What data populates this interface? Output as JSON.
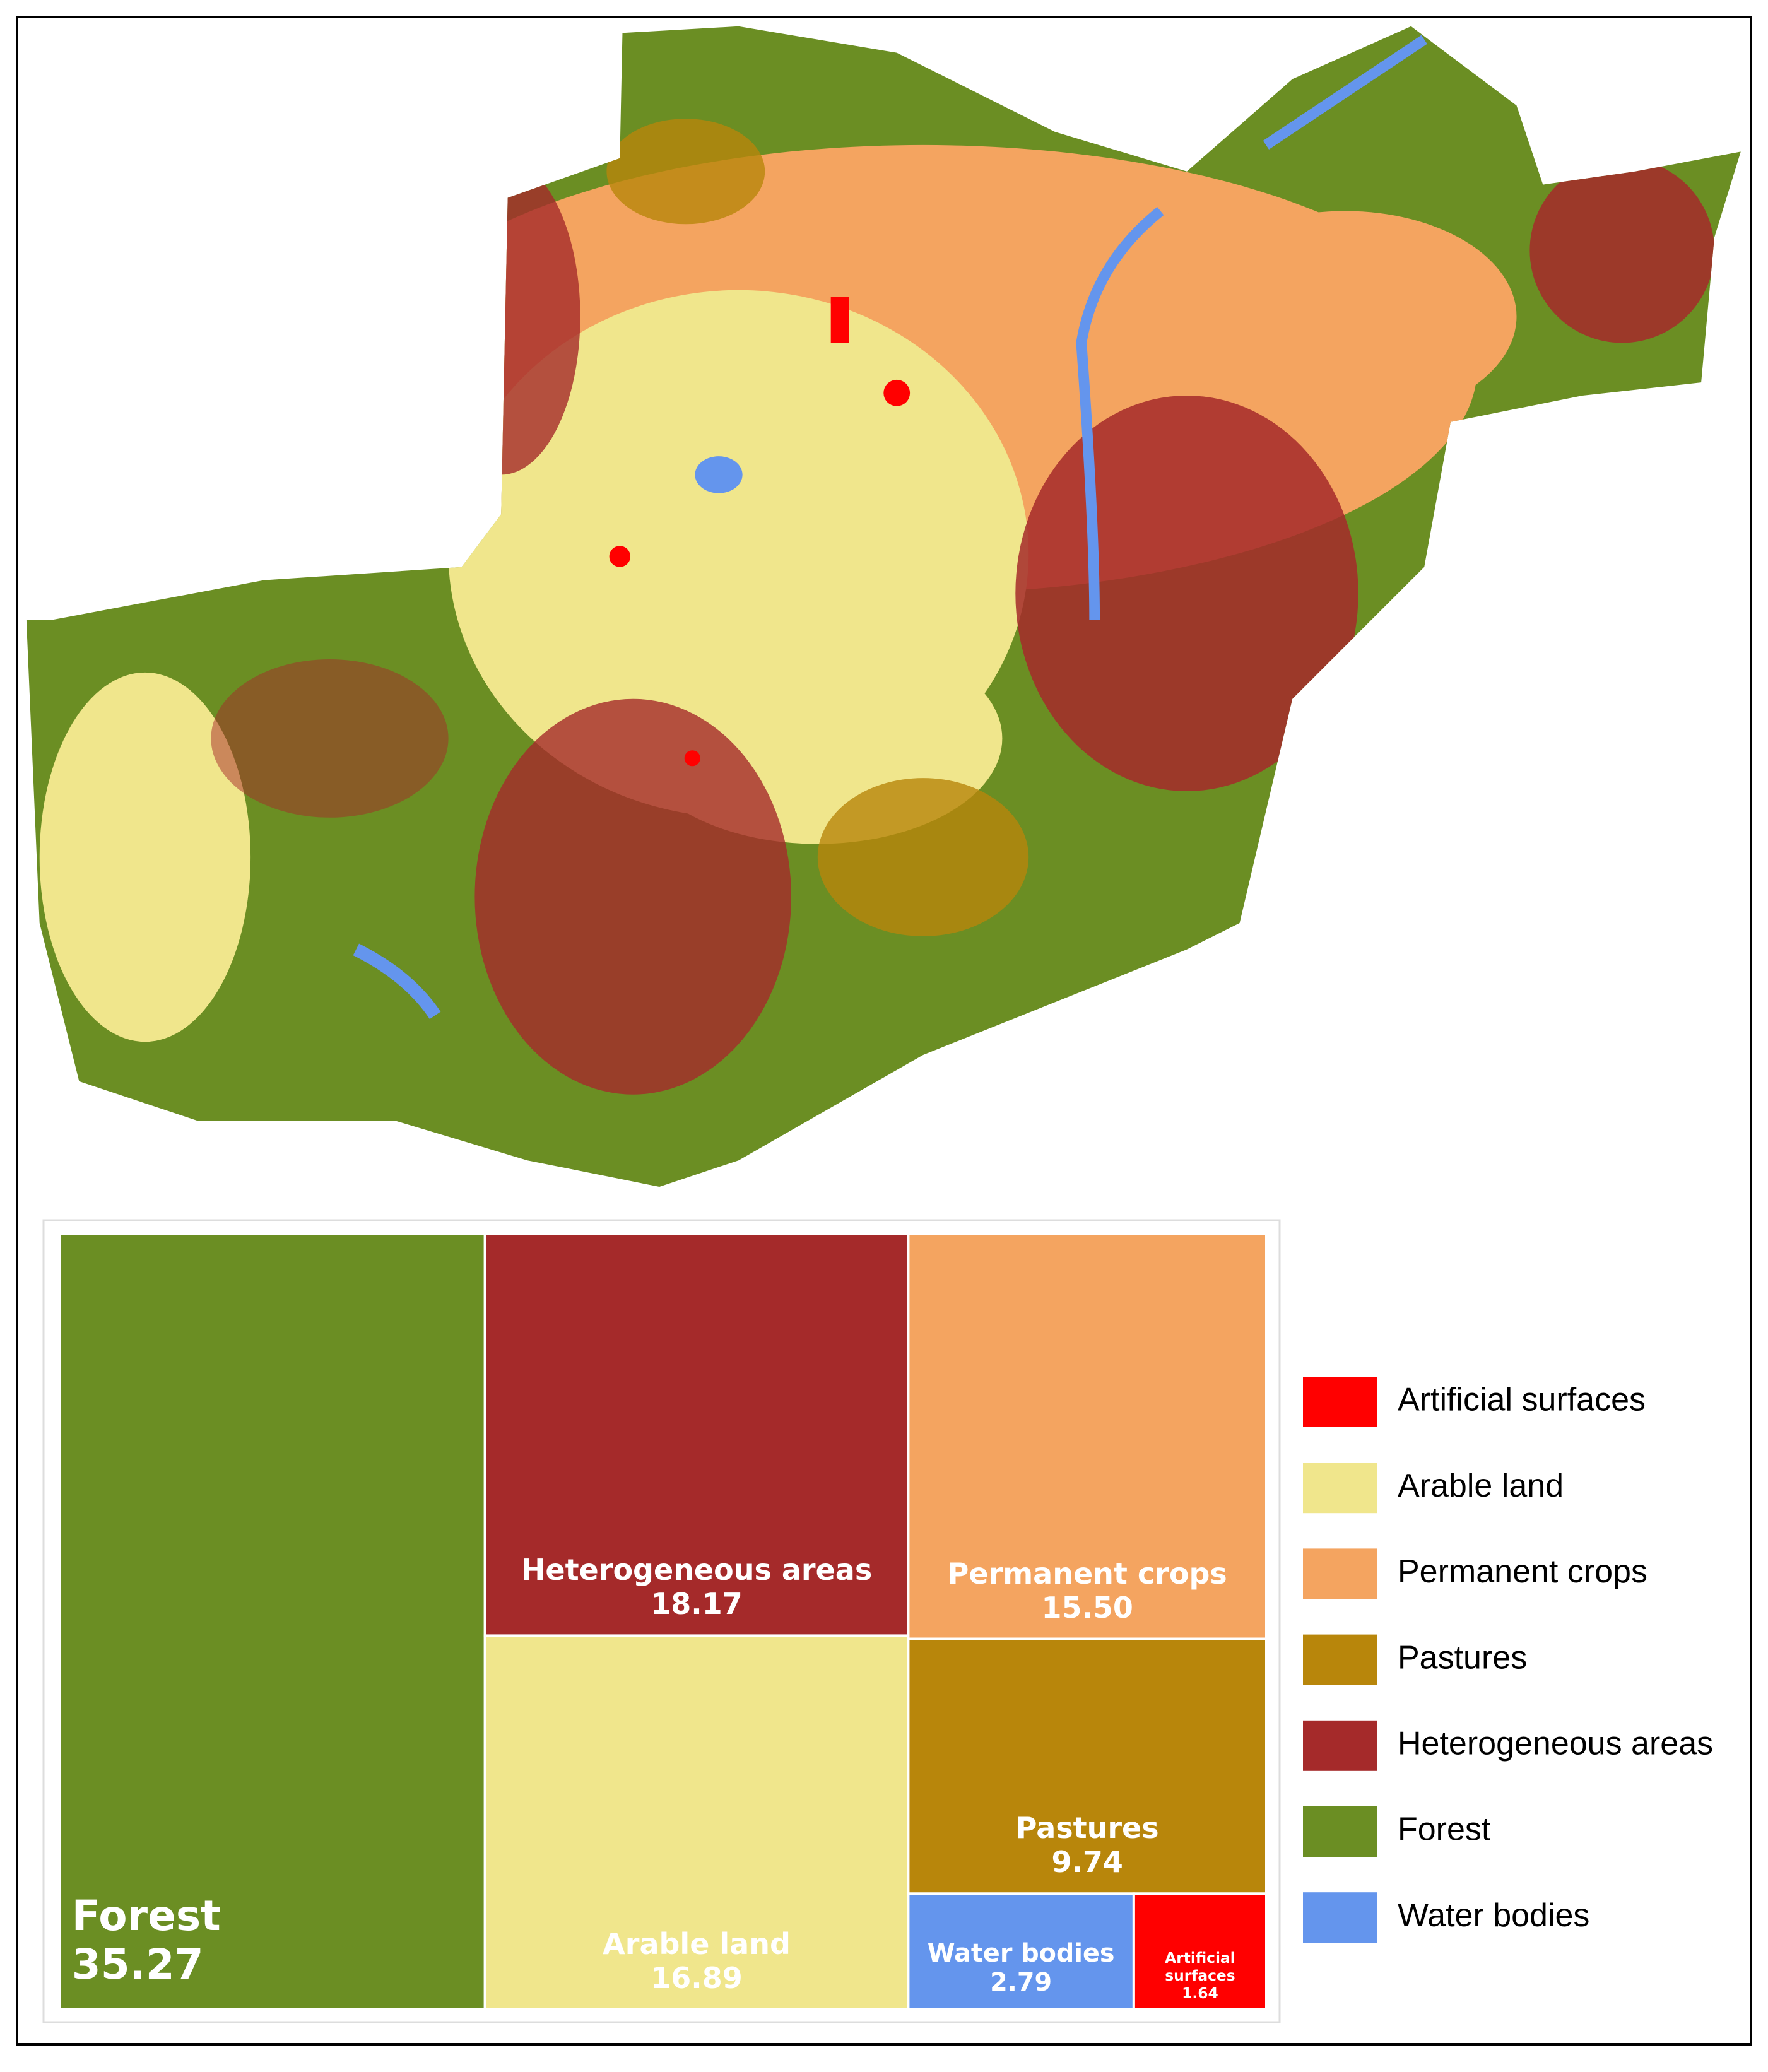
{
  "chart_data": {
    "type": "treemap",
    "categories": [
      "Artificial surfaces",
      "Arable land",
      "Permanent crops",
      "Pastures",
      "Heterogeneous areas",
      "Forest",
      "Water bodies"
    ],
    "values": [
      1.64,
      16.89,
      15.5,
      9.74,
      18.17,
      35.27,
      2.79
    ],
    "value_labels": [
      "1.64",
      "16.89",
      "15.50",
      "9.74",
      "18.17",
      "35.27",
      "2.79"
    ],
    "colors": [
      "#ff0000",
      "#f0e68c",
      "#f4a460",
      "#b8860b",
      "#a52a2a",
      "#6b8e23",
      "#6495ed"
    ]
  }
}
